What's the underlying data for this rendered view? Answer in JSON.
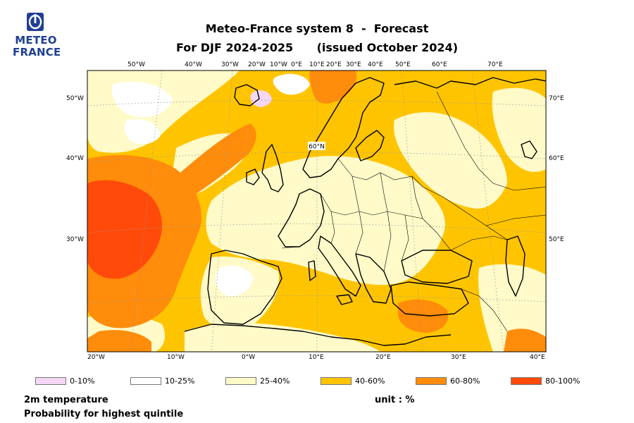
{
  "title_line1": "Meteo-France system 8  -  Forecast",
  "title_line2": "For DJF 2024-2025      (issued October 2024)",
  "logo": {
    "line1": "METEO",
    "line2": "FRANCE",
    "color": "#1f3f94"
  },
  "map": {
    "top_ticks": [
      "50°W",
      "40°W",
      "30°W",
      "20°W",
      "10°W",
      "0°E",
      "10°E",
      "20°E",
      "30°E",
      "40°E",
      "50°E",
      "60°E",
      "70°E"
    ],
    "bottom_ticks": [
      "20°W",
      "10°W",
      "0°W",
      "10°E",
      "20°E",
      "30°E",
      "40°E"
    ],
    "left_ticks": [
      "50°W",
      "40°W",
      "30°W"
    ],
    "right_ticks": [
      "70°E",
      "60°E",
      "50°E"
    ],
    "inner_label": "60°N",
    "region_colors": {
      "bin_0_10": "#f5d6f5",
      "bin_10_25": "#ffffff",
      "bin_25_40": "#fffac8",
      "bin_40_60": "#ffc400",
      "bin_60_80": "#ff8c0a",
      "bin_80_100": "#ff4a0a"
    }
  },
  "legend": [
    {
      "label": "0-10%",
      "color": "#f5d6f5"
    },
    {
      "label": "10-25%",
      "color": "#ffffff"
    },
    {
      "label": "25-40%",
      "color": "#fffac8"
    },
    {
      "label": "40-60%",
      "color": "#ffc400"
    },
    {
      "label": "60-80%",
      "color": "#ff8c0a"
    },
    {
      "label": "80-100%",
      "color": "#ff4a0a"
    }
  ],
  "variable": "2m temperature",
  "statistic": "Probability for highest quintile",
  "unit": "unit : %"
}
